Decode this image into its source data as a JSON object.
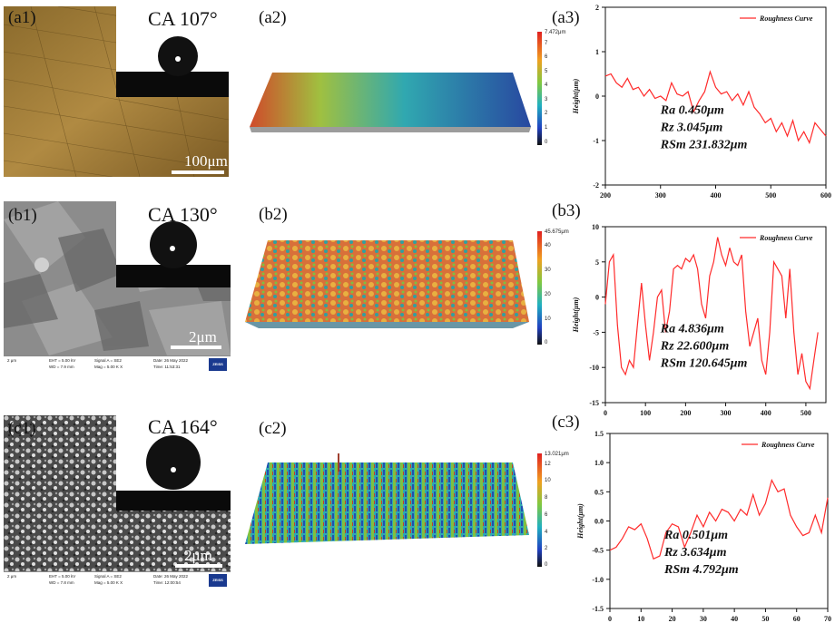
{
  "labels": {
    "a1": "(a1)",
    "a2": "(a2)",
    "a3": "(a3)",
    "b1": "(b1)",
    "b2": "(b2)",
    "b3": "(b3)",
    "c1": "(c1)",
    "c2": "(c2)",
    "c3": "(c3)"
  },
  "contact_angles": {
    "a": "CA 107°",
    "b": "CA 130°",
    "c": "CA 164°"
  },
  "scale_bars": {
    "a": "100μm",
    "b": "2μm",
    "c": "2μm"
  },
  "sem_info": {
    "b": {
      "scale": "2 μm",
      "eht": "EHT = 5.00 kV",
      "wd": "WD = 7.9 mm",
      "signal": "Signal A = SE2",
      "mag": "Mag = 5.00 K X",
      "date": "Date: 26 May 2022",
      "time": "Time: 11:53:31",
      "brand": "ZEISS"
    },
    "c": {
      "scale": "2 μm",
      "eht": "EHT = 5.00 kV",
      "wd": "WD = 7.8 mm",
      "signal": "Signal A = SE2",
      "mag": "Mag = 5.00 K X",
      "date": "Date: 26 May 2022",
      "time": "Time: 12:00:54",
      "brand": "ZEISS"
    }
  },
  "colorbars": {
    "a": {
      "max_label": "7.472μm",
      "ticks": [
        "7",
        "6",
        "5",
        "4",
        "3",
        "2",
        "1",
        "0"
      ]
    },
    "b": {
      "max_label": "45.675μm",
      "ticks": [
        "40",
        "30",
        "20",
        "10",
        "0"
      ]
    },
    "c": {
      "max_label": "13.021μm",
      "ticks": [
        "12",
        "10",
        "8",
        "6",
        "4",
        "2",
        "0"
      ]
    }
  },
  "colors": {
    "curve": "#ff2a2a",
    "axis": "#111111"
  },
  "chart_data": [
    {
      "type": "line",
      "id": "a3",
      "title": "",
      "legend": "Roughness Curve",
      "legend_position": "top-right",
      "xlabel": "",
      "ylabel": "Height(μm)",
      "xlim": [
        200,
        600
      ],
      "ylim": [
        -2,
        2
      ],
      "xticks": [
        200,
        300,
        400,
        500,
        600
      ],
      "yticks": [
        -2,
        -1,
        0,
        1,
        2
      ],
      "annotations": [
        "Ra 0.450μm",
        "Rz  3.045μm",
        "RSm 231.832μm"
      ],
      "x": [
        200,
        210,
        220,
        230,
        240,
        250,
        260,
        270,
        280,
        290,
        300,
        310,
        320,
        330,
        340,
        350,
        360,
        370,
        380,
        390,
        400,
        410,
        420,
        430,
        440,
        450,
        460,
        470,
        480,
        490,
        500,
        510,
        520,
        530,
        540,
        550,
        560,
        570,
        580,
        590,
        600
      ],
      "y": [
        0.45,
        0.5,
        0.3,
        0.2,
        0.4,
        0.15,
        0.2,
        0.0,
        0.15,
        -0.05,
        0.0,
        -0.1,
        0.3,
        0.05,
        0.0,
        0.1,
        -0.35,
        -0.1,
        0.1,
        0.55,
        0.2,
        0.05,
        0.1,
        -0.1,
        0.05,
        -0.2,
        0.1,
        -0.25,
        -0.4,
        -0.6,
        -0.5,
        -0.8,
        -0.6,
        -0.9,
        -0.55,
        -1.0,
        -0.8,
        -1.05,
        -0.6,
        -0.75,
        -0.9
      ]
    },
    {
      "type": "line",
      "id": "b3",
      "title": "",
      "legend": "Roughness Curve",
      "legend_position": "top-right",
      "xlabel": "",
      "ylabel": "Height(μm)",
      "xlim": [
        0,
        550
      ],
      "ylim": [
        -15,
        10
      ],
      "xticks": [
        0,
        100,
        200,
        300,
        400,
        500
      ],
      "yticks": [
        -15,
        -10,
        -5,
        0,
        5,
        10
      ],
      "annotations": [
        "Ra 4.836μm",
        "Rz  22.600μm",
        "RSm 120.645μm"
      ],
      "x": [
        0,
        10,
        20,
        30,
        40,
        50,
        60,
        70,
        80,
        90,
        100,
        110,
        120,
        130,
        140,
        150,
        160,
        170,
        180,
        190,
        200,
        210,
        220,
        230,
        240,
        250,
        260,
        270,
        280,
        290,
        300,
        310,
        320,
        330,
        340,
        350,
        360,
        370,
        380,
        390,
        400,
        410,
        420,
        430,
        440,
        450,
        460,
        470,
        480,
        490,
        500,
        510,
        520,
        530
      ],
      "y": [
        -1,
        5,
        6,
        -4,
        -10,
        -11,
        -9,
        -10,
        -4,
        2,
        -4,
        -9,
        -5,
        0,
        1,
        -5,
        -2,
        4,
        4.5,
        4,
        5.5,
        5,
        6,
        4,
        -1,
        -3,
        3,
        5,
        8.5,
        6,
        4.5,
        7,
        5,
        4.5,
        6,
        -2,
        -7,
        -5,
        -3,
        -9,
        -11,
        -5,
        5,
        4,
        3,
        -3,
        4,
        -5,
        -11,
        -8,
        -12,
        -13,
        -9,
        -5
      ]
    },
    {
      "type": "line",
      "id": "c3",
      "title": "",
      "legend": "Roughness Curve",
      "legend_position": "top-right",
      "xlabel": "",
      "ylabel": "Height(μm)",
      "xlim": [
        0,
        70
      ],
      "ylim": [
        -1.5,
        1.5
      ],
      "xticks": [
        0,
        10,
        20,
        30,
        40,
        50,
        60,
        70
      ],
      "yticks": [
        -1.5,
        -1.0,
        -0.5,
        0.0,
        0.5,
        1.0,
        1.5
      ],
      "annotations": [
        "Ra 0.501μm",
        "Rz  3.634μm",
        "RSm 4.792μm"
      ],
      "x": [
        0,
        2,
        4,
        6,
        8,
        10,
        12,
        14,
        16,
        18,
        20,
        22,
        24,
        26,
        28,
        30,
        32,
        34,
        36,
        38,
        40,
        42,
        44,
        46,
        48,
        50,
        52,
        54,
        56,
        58,
        60,
        62,
        64,
        66,
        68,
        70
      ],
      "y": [
        -0.5,
        -0.45,
        -0.3,
        -0.1,
        -0.15,
        -0.05,
        -0.3,
        -0.65,
        -0.6,
        -0.2,
        -0.05,
        -0.1,
        -0.45,
        -0.2,
        0.1,
        -0.1,
        0.15,
        0.0,
        0.2,
        0.15,
        0.0,
        0.2,
        0.1,
        0.45,
        0.1,
        0.3,
        0.7,
        0.5,
        0.55,
        0.1,
        -0.1,
        -0.25,
        -0.2,
        0.1,
        -0.2,
        0.4
      ]
    }
  ]
}
